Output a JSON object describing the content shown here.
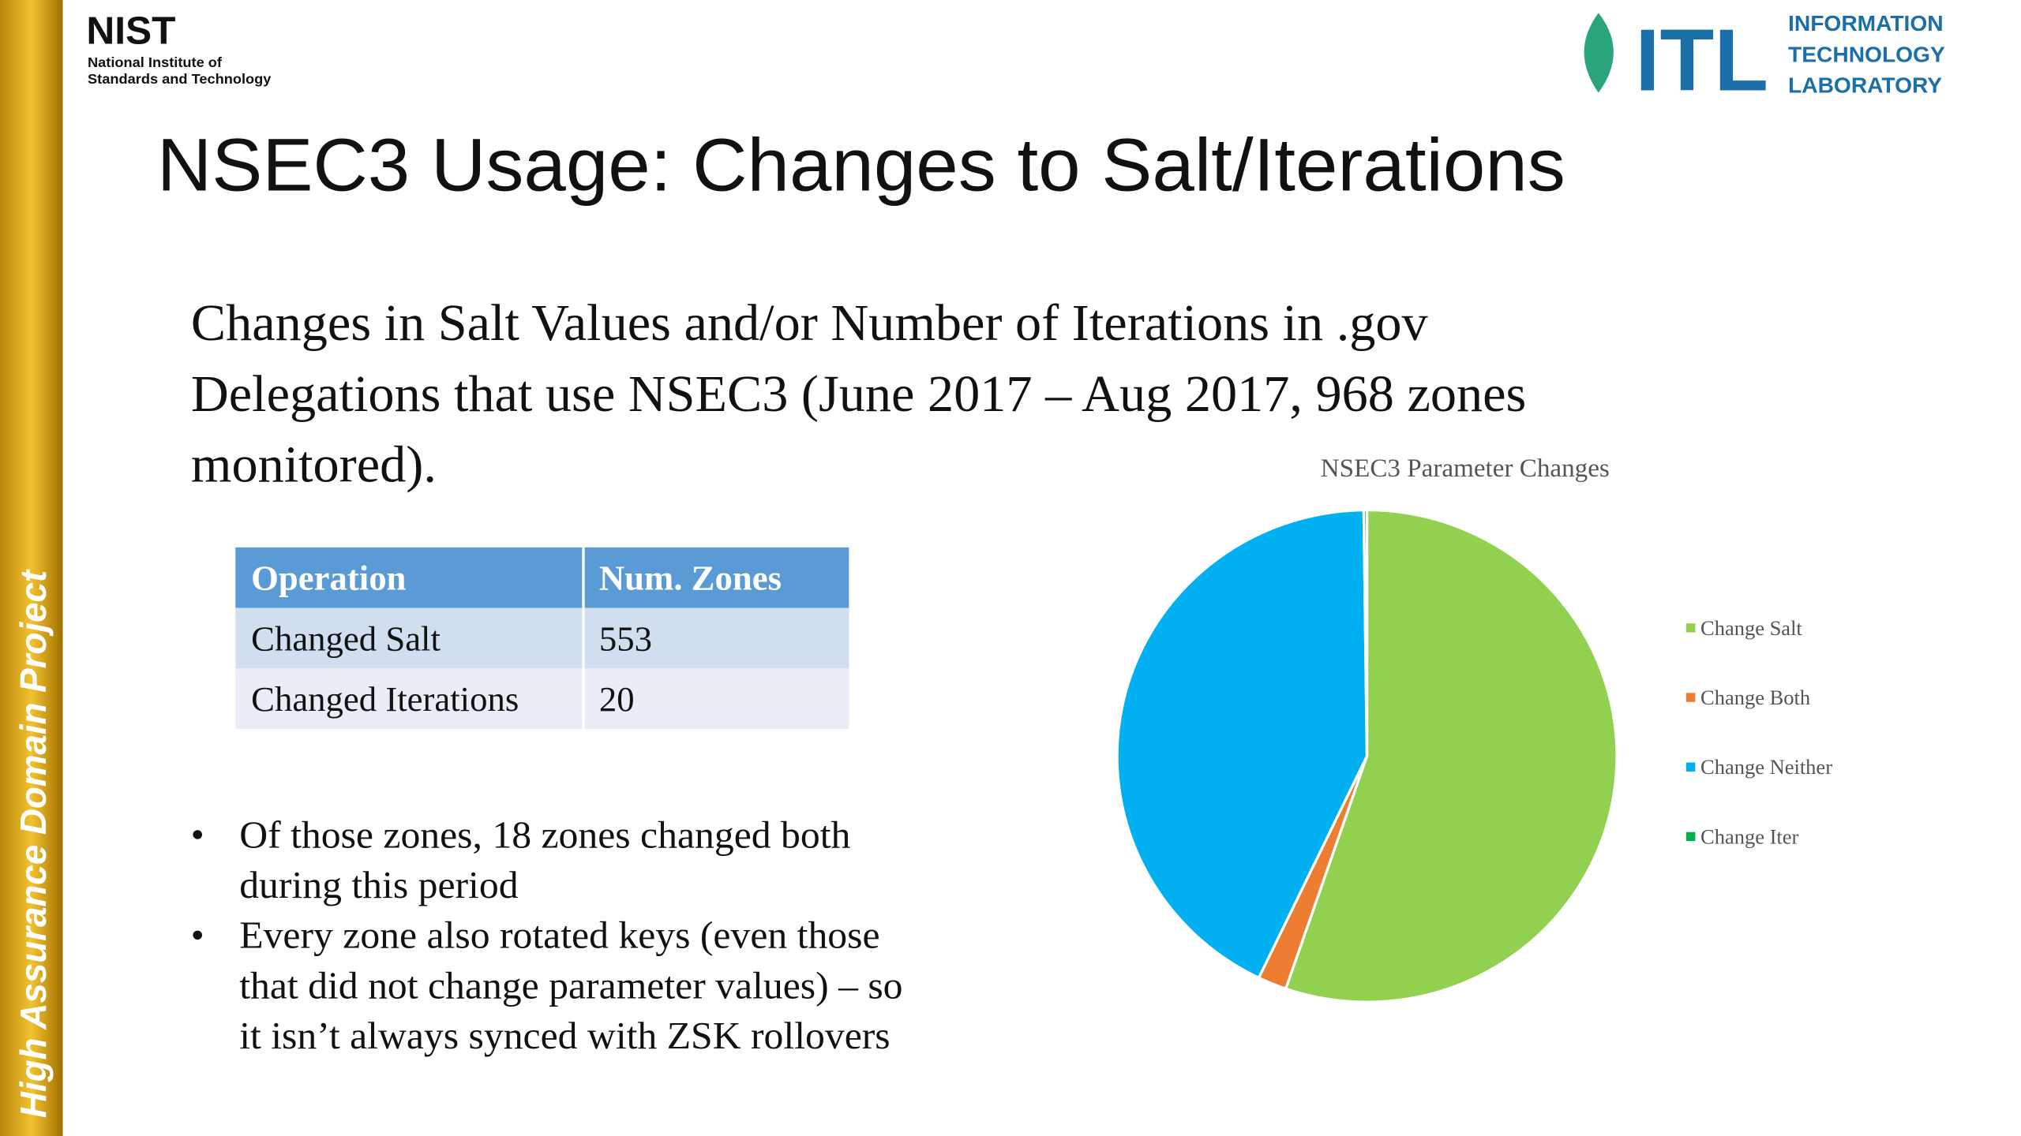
{
  "header": {
    "nist_logo": "NIST",
    "nist_line1": "National Institute of",
    "nist_line2": "Standards and Technology",
    "itl_logo": "ITL",
    "itl_line1": "INFORMATION",
    "itl_line2": "TECHNOLOGY",
    "itl_line3": "LABORATORY"
  },
  "side_label": "High Assurance Domain Project",
  "title": "NSEC3 Usage: Changes to Salt/Iterations",
  "subtitle": [
    "Changes in Salt Values and/or Number of Iterations in .gov",
    "Delegations that use NSEC3 (June 2017 – Aug 2017, 968 zones",
    "monitored)."
  ],
  "table": {
    "header": [
      "Operation",
      "Num. Zones"
    ],
    "rows": [
      [
        "Changed Salt",
        553
      ],
      [
        "Changed Iterations",
        20
      ]
    ]
  },
  "bullets": [
    [
      "Of those zones, 18 zones changed both",
      "during this period"
    ],
    [
      "Every zone also rotated keys (even those",
      "that did not change parameter values) – so",
      "it isn’t always synced with ZSK rollovers"
    ]
  ],
  "chart_data": {
    "type": "pie",
    "title": "NSEC3 Parameter Changes",
    "categories": [
      "Change Salt",
      "Change Both",
      "Change Neither",
      "Change Iter"
    ],
    "values": [
      535,
      18,
      413,
      2
    ],
    "colors": [
      "#92d050",
      "#ed7d31",
      "#00b0f0",
      "#00b050"
    ],
    "legend": "right"
  }
}
